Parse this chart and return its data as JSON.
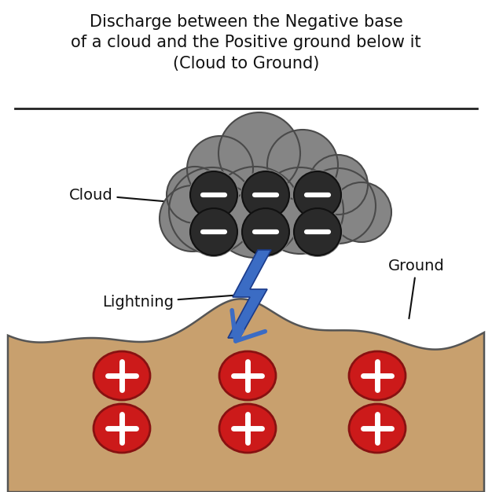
{
  "title": "Discharge between the Negative base\nof a cloud and the Positive ground below it\n(Cloud to Ground)",
  "title_fontsize": 15,
  "background_color": "#ffffff",
  "cloud_color": "#858585",
  "cloud_outline_color": "#4a4a4a",
  "negative_ball_color": "#2a2a2a",
  "negative_ball_outline": "#111111",
  "lightning_color": "#3b6cc4",
  "lightning_edge_color": "#1a3a8a",
  "ground_fill_color": "#c8a06e",
  "ground_edge_color": "#555555",
  "positive_ball_color": "#cc1a1a",
  "positive_ball_outline": "#881111",
  "cloud_label": "Cloud",
  "lightning_label": "Lightning",
  "ground_label": "Ground",
  "minus_color": "#ffffff",
  "plus_color": "#ffffff",
  "label_fontsize": 14,
  "line_color": "#111111"
}
